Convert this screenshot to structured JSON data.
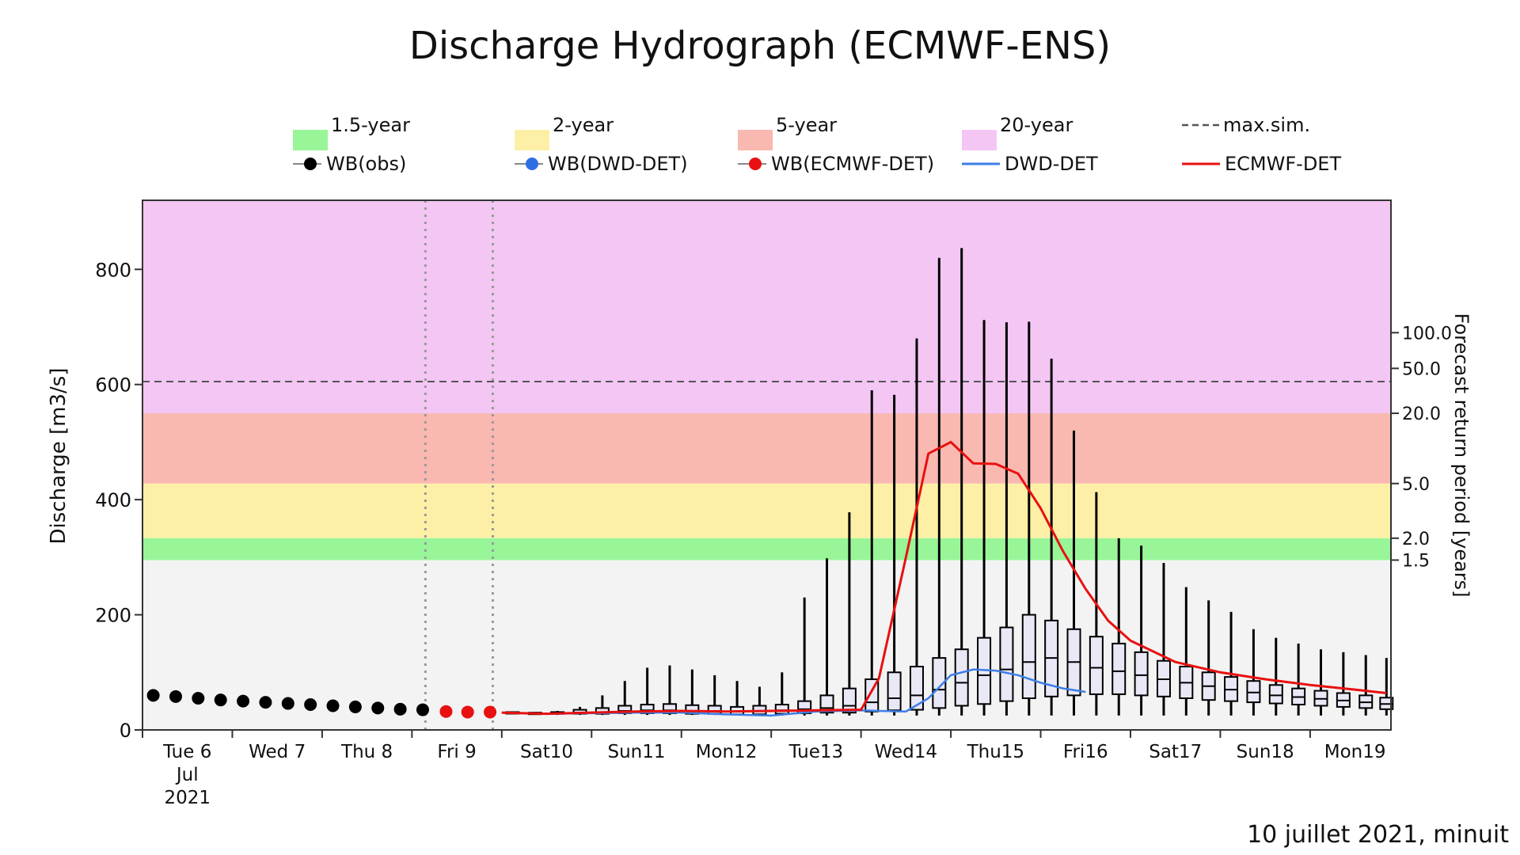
{
  "chart_data": {
    "type": "box",
    "title": "Discharge Hydrograph (ECMWF-ENS)",
    "ylabel": "Discharge [m3/s]",
    "y2label": "Forecast return period [years]",
    "ylim": [
      0,
      920
    ],
    "yticks": [
      0,
      200,
      400,
      600,
      800
    ],
    "xlim": [
      0,
      13.9
    ],
    "day_labels": [
      {
        "day": 0,
        "lines": [
          "Tue 6",
          "Jul",
          "2021"
        ]
      },
      {
        "day": 1,
        "lines": [
          "Wed 7"
        ]
      },
      {
        "day": 2,
        "lines": [
          "Thu 8"
        ]
      },
      {
        "day": 3,
        "lines": [
          "Fri 9"
        ]
      },
      {
        "day": 4,
        "lines": [
          "Sat10"
        ]
      },
      {
        "day": 5,
        "lines": [
          "Sun11"
        ]
      },
      {
        "day": 6,
        "lines": [
          "Mon12"
        ]
      },
      {
        "day": 7,
        "lines": [
          "Tue13"
        ]
      },
      {
        "day": 8,
        "lines": [
          "Wed14"
        ]
      },
      {
        "day": 9,
        "lines": [
          "Thu15"
        ]
      },
      {
        "day": 10,
        "lines": [
          "Fri16"
        ]
      },
      {
        "day": 11,
        "lines": [
          "Sat17"
        ]
      },
      {
        "day": 12,
        "lines": [
          "Sun18"
        ]
      },
      {
        "day": 13,
        "lines": [
          "Mon19"
        ]
      }
    ],
    "forecast_markers": [
      3.15,
      3.9
    ],
    "bands": [
      {
        "name": "1.5-year",
        "from": 295,
        "to": 333,
        "color": "#98f598"
      },
      {
        "name": "2-year",
        "from": 333,
        "to": 428,
        "color": "#fdf0a6"
      },
      {
        "name": "5-year",
        "from": 428,
        "to": 550,
        "color": "#f9b8b0"
      },
      {
        "name": "20-year",
        "from": 550,
        "to": 920,
        "color": "#f4c6f4"
      }
    ],
    "below_band_color": "#f3f3f3",
    "max_sim": 605,
    "return_periods": [
      {
        "label": "100.0",
        "value": 690
      },
      {
        "label": "50.0",
        "value": 628
      },
      {
        "label": "20.0",
        "value": 550
      },
      {
        "label": "5.0",
        "value": 428
      },
      {
        "label": "2.0",
        "value": 333
      },
      {
        "label": "1.5",
        "value": 295
      }
    ],
    "legend": [
      {
        "name": "1.5-year",
        "kind": "patch",
        "color": "#98f598"
      },
      {
        "name": "2-year",
        "kind": "patch",
        "color": "#fdf0a6"
      },
      {
        "name": "5-year",
        "kind": "patch",
        "color": "#f9b8b0"
      },
      {
        "name": "20-year",
        "kind": "patch",
        "color": "#f4c6f4"
      },
      {
        "name": "max.sim.",
        "kind": "dash",
        "color": "#555555"
      },
      {
        "name": "WB(obs)",
        "kind": "dot",
        "color": "#000000"
      },
      {
        "name": "WB(DWD-DET)",
        "kind": "dot",
        "color": "#2f6fe6"
      },
      {
        "name": "WB(ECMWF-DET)",
        "kind": "dot",
        "color": "#e81010"
      },
      {
        "name": "DWD-DET",
        "kind": "line",
        "color": "#3d7ee6"
      },
      {
        "name": "ECMWF-DET",
        "kind": "line",
        "color": "#e81010"
      }
    ],
    "wb_obs": {
      "x": [
        0.12,
        0.37,
        0.62,
        0.87,
        1.12,
        1.37,
        1.62,
        1.87,
        2.12,
        2.37,
        2.62,
        2.87,
        3.12
      ],
      "y": [
        60,
        58,
        55,
        52,
        50,
        48,
        46,
        44,
        42,
        40,
        38,
        36,
        35
      ]
    },
    "wb_ecmwf_det": {
      "x": [
        3.38,
        3.62,
        3.87
      ],
      "y": [
        32,
        31,
        31
      ]
    },
    "ecmwf_det": {
      "x": [
        4.0,
        4.5,
        5.0,
        5.5,
        6.0,
        6.5,
        7.0,
        7.5,
        8.0,
        8.2,
        8.5,
        8.75,
        9.0,
        9.25,
        9.5,
        9.75,
        10.0,
        10.25,
        10.5,
        10.75,
        11.0,
        11.5,
        12.0,
        12.5,
        13.0,
        13.5,
        13.85
      ],
      "y": [
        30,
        28,
        30,
        32,
        33,
        32,
        33,
        34,
        35,
        90,
        300,
        480,
        500,
        463,
        462,
        445,
        385,
        310,
        245,
        190,
        155,
        118,
        100,
        88,
        78,
        70,
        64
      ]
    },
    "dwd_det": {
      "x": [
        4.0,
        4.5,
        5.0,
        5.5,
        6.0,
        6.5,
        7.0,
        7.5,
        8.0,
        8.2,
        8.5,
        8.75,
        9.0,
        9.25,
        9.5,
        9.75,
        10.0,
        10.25,
        10.5
      ],
      "y": [
        30,
        28,
        29,
        30,
        30,
        27,
        25,
        32,
        34,
        33,
        32,
        55,
        95,
        105,
        103,
        95,
        82,
        72,
        66
      ]
    },
    "boxes": {
      "x": [
        4.12,
        4.37,
        4.62,
        4.87,
        5.12,
        5.37,
        5.62,
        5.87,
        6.12,
        6.37,
        6.62,
        6.87,
        7.12,
        7.37,
        7.62,
        7.87,
        8.12,
        8.37,
        8.62,
        8.87,
        9.12,
        9.37,
        9.62,
        9.87,
        10.12,
        10.37,
        10.62,
        10.87,
        11.12,
        11.37,
        11.62,
        11.87,
        12.12,
        12.37,
        12.62,
        12.87,
        13.12,
        13.37,
        13.62,
        13.85
      ],
      "min": [
        28,
        27,
        26,
        26,
        26,
        26,
        26,
        26,
        26,
        26,
        25,
        25,
        25,
        25,
        25,
        25,
        25,
        25,
        25,
        25,
        25,
        25,
        25,
        25,
        25,
        25,
        25,
        25,
        25,
        25,
        25,
        25,
        25,
        25,
        25,
        25,
        25,
        25,
        25,
        25
      ],
      "q1": [
        29,
        28,
        28,
        28,
        28,
        29,
        29,
        29,
        28,
        28,
        27,
        27,
        28,
        29,
        30,
        30,
        32,
        34,
        35,
        38,
        42,
        45,
        50,
        55,
        58,
        60,
        62,
        62,
        60,
        58,
        55,
        52,
        50,
        48,
        46,
        44,
        42,
        40,
        38,
        36
      ],
      "median": [
        30,
        29,
        29,
        30,
        31,
        33,
        34,
        34,
        33,
        33,
        32,
        33,
        34,
        36,
        38,
        42,
        48,
        55,
        60,
        70,
        82,
        95,
        105,
        118,
        125,
        118,
        108,
        102,
        95,
        88,
        82,
        76,
        70,
        65,
        60,
        57,
        54,
        51,
        48,
        45
      ],
      "q3": [
        31,
        30,
        31,
        35,
        38,
        42,
        44,
        45,
        43,
        42,
        40,
        42,
        44,
        50,
        60,
        72,
        88,
        100,
        110,
        125,
        140,
        160,
        178,
        200,
        190,
        175,
        162,
        150,
        135,
        120,
        110,
        100,
        92,
        85,
        78,
        72,
        68,
        64,
        60,
        56
      ],
      "max": [
        32,
        31,
        33,
        40,
        60,
        85,
        108,
        112,
        105,
        95,
        85,
        75,
        100,
        230,
        298,
        378,
        590,
        582,
        680,
        820,
        837,
        712,
        708,
        709,
        645,
        520,
        413,
        333,
        320,
        290,
        248,
        225,
        205,
        175,
        160,
        150,
        140,
        135,
        130,
        125
      ]
    }
  },
  "footer": {
    "caption": "10 juillet 2021, minuit"
  }
}
